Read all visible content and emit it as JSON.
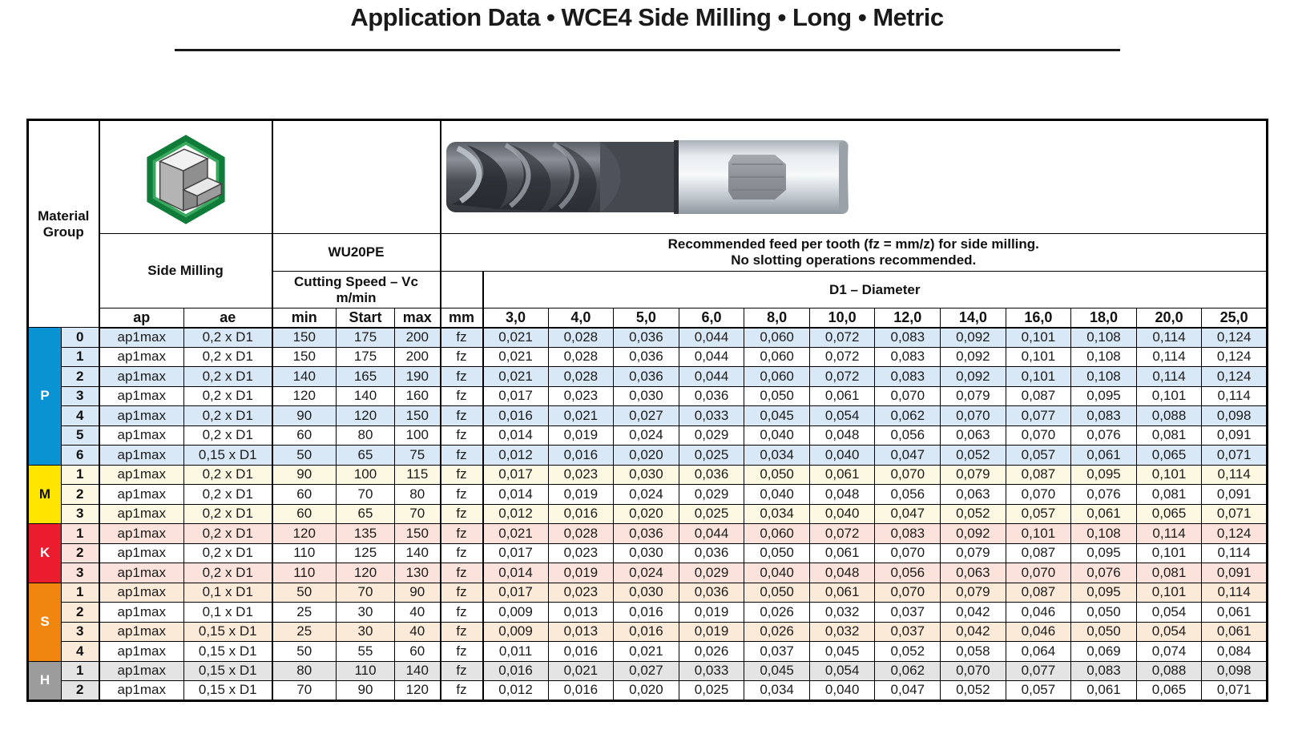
{
  "title": "Application Data • WCE4 Side Milling • Long • Metric",
  "header": {
    "material_group": "Material Group",
    "side_milling": "Side Milling",
    "tool_series": "WU20PE",
    "cutting_speed_line1": "Cutting Speed – Vc",
    "cutting_speed_line2": "m/min",
    "ap": "ap",
    "ae": "ae",
    "min": "min",
    "start": "Start",
    "max": "max",
    "mm": "mm",
    "feed_note_line1": "Recommended feed per tooth (fz = mm/z) for side milling.",
    "feed_note_line2": "No slotting operations recommended.",
    "diameter_label": "D1 – Diameter",
    "diameters": [
      "3,0",
      "4,0",
      "5,0",
      "6,0",
      "8,0",
      "10,0",
      "12,0",
      "14,0",
      "16,0",
      "18,0",
      "20,0",
      "25,0"
    ]
  },
  "icons": {
    "side_milling_icon": "green-hexagon-step-block",
    "tool_photo": "4-flute-end-mill-with-weldon-shank"
  },
  "colors": {
    "grid": "#000000",
    "P": "#0a93d2",
    "P_tint": "#d9e8f6",
    "M": "#ffe500",
    "M_tint": "#fcf8e1",
    "K": "#ea1c2d",
    "K_tint": "#fbe3db",
    "S": "#f1860f",
    "S_tint": "#fcead9",
    "H": "#9c9c9c",
    "H_tint": "#e4e4e4"
  },
  "groups": [
    {
      "id": "P",
      "color": "#0a93d2",
      "letter_color": "#ffffff",
      "tint": "#d9e8f6",
      "rows": [
        {
          "sub": "0",
          "ap": "ap1max",
          "ae": "0,2 x D1",
          "min": "150",
          "start": "175",
          "max": "200",
          "unit": "fz",
          "feeds": [
            "0,021",
            "0,028",
            "0,036",
            "0,044",
            "0,060",
            "0,072",
            "0,083",
            "0,092",
            "0,101",
            "0,108",
            "0,114",
            "0,124"
          ]
        },
        {
          "sub": "1",
          "ap": "ap1max",
          "ae": "0,2 x D1",
          "min": "150",
          "start": "175",
          "max": "200",
          "unit": "fz",
          "feeds": [
            "0,021",
            "0,028",
            "0,036",
            "0,044",
            "0,060",
            "0,072",
            "0,083",
            "0,092",
            "0,101",
            "0,108",
            "0,114",
            "0,124"
          ]
        },
        {
          "sub": "2",
          "ap": "ap1max",
          "ae": "0,2 x D1",
          "min": "140",
          "start": "165",
          "max": "190",
          "unit": "fz",
          "feeds": [
            "0,021",
            "0,028",
            "0,036",
            "0,044",
            "0,060",
            "0,072",
            "0,083",
            "0,092",
            "0,101",
            "0,108",
            "0,114",
            "0,124"
          ]
        },
        {
          "sub": "3",
          "ap": "ap1max",
          "ae": "0,2 x D1",
          "min": "120",
          "start": "140",
          "max": "160",
          "unit": "fz",
          "feeds": [
            "0,017",
            "0,023",
            "0,030",
            "0,036",
            "0,050",
            "0,061",
            "0,070",
            "0,079",
            "0,087",
            "0,095",
            "0,101",
            "0,114"
          ]
        },
        {
          "sub": "4",
          "ap": "ap1max",
          "ae": "0,2 x D1",
          "min": "90",
          "start": "120",
          "max": "150",
          "unit": "fz",
          "feeds": [
            "0,016",
            "0,021",
            "0,027",
            "0,033",
            "0,045",
            "0,054",
            "0,062",
            "0,070",
            "0,077",
            "0,083",
            "0,088",
            "0,098"
          ]
        },
        {
          "sub": "5",
          "ap": "ap1max",
          "ae": "0,2 x D1",
          "min": "60",
          "start": "80",
          "max": "100",
          "unit": "fz",
          "feeds": [
            "0,014",
            "0,019",
            "0,024",
            "0,029",
            "0,040",
            "0,048",
            "0,056",
            "0,063",
            "0,070",
            "0,076",
            "0,081",
            "0,091"
          ]
        },
        {
          "sub": "6",
          "ap": "ap1max",
          "ae": "0,15 x D1",
          "min": "50",
          "start": "65",
          "max": "75",
          "unit": "fz",
          "feeds": [
            "0,012",
            "0,016",
            "0,020",
            "0,025",
            "0,034",
            "0,040",
            "0,047",
            "0,052",
            "0,057",
            "0,061",
            "0,065",
            "0,071"
          ]
        }
      ]
    },
    {
      "id": "M",
      "color": "#ffe500",
      "letter_color": "#111111",
      "tint": "#fcf8e1",
      "rows": [
        {
          "sub": "1",
          "ap": "ap1max",
          "ae": "0,2 x D1",
          "min": "90",
          "start": "100",
          "max": "115",
          "unit": "fz",
          "feeds": [
            "0,017",
            "0,023",
            "0,030",
            "0,036",
            "0,050",
            "0,061",
            "0,070",
            "0,079",
            "0,087",
            "0,095",
            "0,101",
            "0,114"
          ]
        },
        {
          "sub": "2",
          "ap": "ap1max",
          "ae": "0,2 x D1",
          "min": "60",
          "start": "70",
          "max": "80",
          "unit": "fz",
          "feeds": [
            "0,014",
            "0,019",
            "0,024",
            "0,029",
            "0,040",
            "0,048",
            "0,056",
            "0,063",
            "0,070",
            "0,076",
            "0,081",
            "0,091"
          ]
        },
        {
          "sub": "3",
          "ap": "ap1max",
          "ae": "0,2 x D1",
          "min": "60",
          "start": "65",
          "max": "70",
          "unit": "fz",
          "feeds": [
            "0,012",
            "0,016",
            "0,020",
            "0,025",
            "0,034",
            "0,040",
            "0,047",
            "0,052",
            "0,057",
            "0,061",
            "0,065",
            "0,071"
          ]
        }
      ]
    },
    {
      "id": "K",
      "color": "#ea1c2d",
      "letter_color": "#ffffff",
      "tint": "#fbe3db",
      "rows": [
        {
          "sub": "1",
          "ap": "ap1max",
          "ae": "0,2 x D1",
          "min": "120",
          "start": "135",
          "max": "150",
          "unit": "fz",
          "feeds": [
            "0,021",
            "0,028",
            "0,036",
            "0,044",
            "0,060",
            "0,072",
            "0,083",
            "0,092",
            "0,101",
            "0,108",
            "0,114",
            "0,124"
          ]
        },
        {
          "sub": "2",
          "ap": "ap1max",
          "ae": "0,2 x D1",
          "min": "110",
          "start": "125",
          "max": "140",
          "unit": "fz",
          "feeds": [
            "0,017",
            "0,023",
            "0,030",
            "0,036",
            "0,050",
            "0,061",
            "0,070",
            "0,079",
            "0,087",
            "0,095",
            "0,101",
            "0,114"
          ]
        },
        {
          "sub": "3",
          "ap": "ap1max",
          "ae": "0,2 x D1",
          "min": "110",
          "start": "120",
          "max": "130",
          "unit": "fz",
          "feeds": [
            "0,014",
            "0,019",
            "0,024",
            "0,029",
            "0,040",
            "0,048",
            "0,056",
            "0,063",
            "0,070",
            "0,076",
            "0,081",
            "0,091"
          ]
        }
      ]
    },
    {
      "id": "S",
      "color": "#f1860f",
      "letter_color": "#ffffff",
      "tint": "#fcead9",
      "rows": [
        {
          "sub": "1",
          "ap": "ap1max",
          "ae": "0,1 x D1",
          "min": "50",
          "start": "70",
          "max": "90",
          "unit": "fz",
          "feeds": [
            "0,017",
            "0,023",
            "0,030",
            "0,036",
            "0,050",
            "0,061",
            "0,070",
            "0,079",
            "0,087",
            "0,095",
            "0,101",
            "0,114"
          ]
        },
        {
          "sub": "2",
          "ap": "ap1max",
          "ae": "0,1 x D1",
          "min": "25",
          "start": "30",
          "max": "40",
          "unit": "fz",
          "feeds": [
            "0,009",
            "0,013",
            "0,016",
            "0,019",
            "0,026",
            "0,032",
            "0,037",
            "0,042",
            "0,046",
            "0,050",
            "0,054",
            "0,061"
          ]
        },
        {
          "sub": "3",
          "ap": "ap1max",
          "ae": "0,15 x D1",
          "min": "25",
          "start": "30",
          "max": "40",
          "unit": "fz",
          "feeds": [
            "0,009",
            "0,013",
            "0,016",
            "0,019",
            "0,026",
            "0,032",
            "0,037",
            "0,042",
            "0,046",
            "0,050",
            "0,054",
            "0,061"
          ]
        },
        {
          "sub": "4",
          "ap": "ap1max",
          "ae": "0,15 x D1",
          "min": "50",
          "start": "55",
          "max": "60",
          "unit": "fz",
          "feeds": [
            "0,011",
            "0,016",
            "0,021",
            "0,026",
            "0,037",
            "0,045",
            "0,052",
            "0,058",
            "0,064",
            "0,069",
            "0,074",
            "0,084"
          ]
        }
      ]
    },
    {
      "id": "H",
      "color": "#9c9c9c",
      "letter_color": "#ffffff",
      "tint": "#e4e4e4",
      "rows": [
        {
          "sub": "1",
          "ap": "ap1max",
          "ae": "0,15 x D1",
          "min": "80",
          "start": "110",
          "max": "140",
          "unit": "fz",
          "feeds": [
            "0,016",
            "0,021",
            "0,027",
            "0,033",
            "0,045",
            "0,054",
            "0,062",
            "0,070",
            "0,077",
            "0,083",
            "0,088",
            "0,098"
          ]
        },
        {
          "sub": "2",
          "ap": "ap1max",
          "ae": "0,15 x D1",
          "min": "70",
          "start": "90",
          "max": "120",
          "unit": "fz",
          "feeds": [
            "0,012",
            "0,016",
            "0,020",
            "0,025",
            "0,034",
            "0,040",
            "0,047",
            "0,052",
            "0,057",
            "0,061",
            "0,065",
            "0,071"
          ]
        }
      ]
    }
  ]
}
